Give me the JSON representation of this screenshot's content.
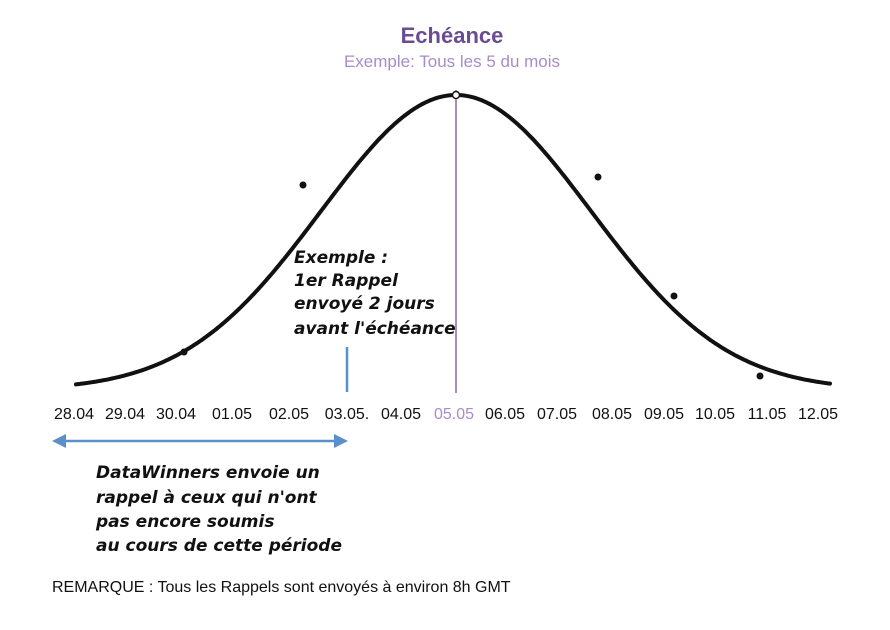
{
  "colors": {
    "accent": "#6a4c93",
    "accent_light": "#a98bc9",
    "blue": "#5b8fc7",
    "curve": "#111111"
  },
  "deadline": {
    "title": "Echéance",
    "subtitle": "Exemple:  Tous les 5 du mois"
  },
  "dates": [
    "28.04",
    "29.04",
    "30.04",
    "01.05",
    "02.05",
    "03.05.",
    "04.05",
    "05.05",
    "06.05",
    "07.05",
    "08.05",
    "09.05",
    "10.05",
    "11.05",
    "12.05"
  ],
  "highlight_date_index": 7,
  "reminder_note": {
    "lines": [
      "Exemple :",
      "1er Rappel",
      "envoyé 2 jours",
      "avant l'échéance"
    ]
  },
  "period_note": {
    "lines": [
      "DataWinners envoie un",
      "rappel à ceux qui n'ont",
      "pas encore soumis",
      "au cours de cette période"
    ]
  },
  "remark": "REMARQUE :  Tous les Rappels sont envoyés à environ 8h GMT"
}
